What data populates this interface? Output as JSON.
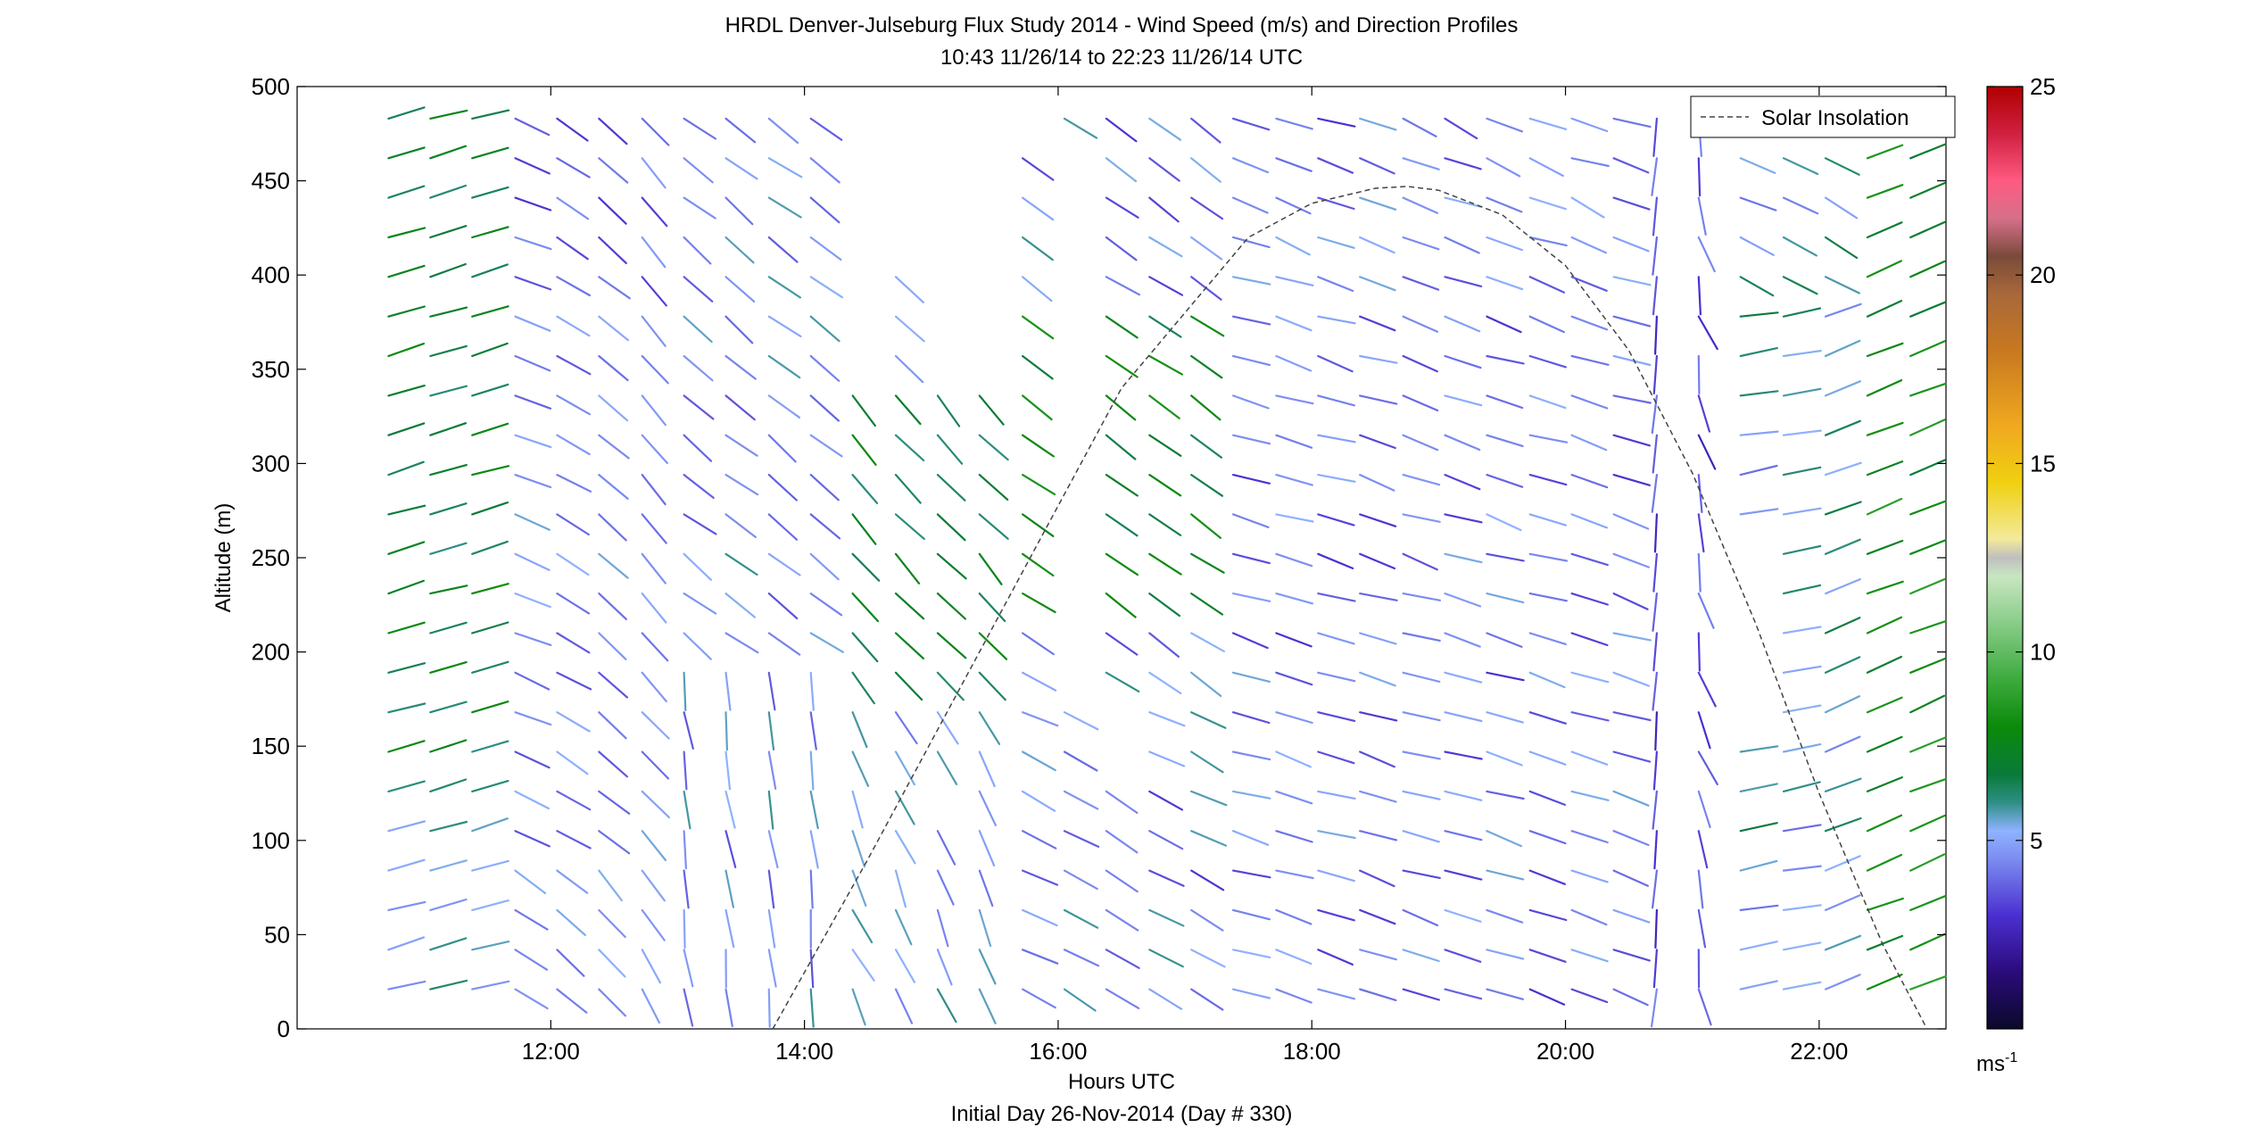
{
  "chart_data": {
    "type": "wind_barb_profile",
    "title": "HRDL Denver-Julseburg Flux Study 2014 - Wind Speed (m/s) and Direction Profiles",
    "subtitle": "10:43 11/26/14 to 22:23 11/26/14  UTC",
    "xlabel": "Hours UTC",
    "xlabel2": "Initial Day 26-Nov-2014 (Day # 330)",
    "ylabel": "Altitude (m)",
    "xlim": [
      10,
      23
    ],
    "ylim": [
      0,
      500
    ],
    "xticks": [
      12,
      14,
      16,
      18,
      20,
      22
    ],
    "xtick_labels": [
      "12:00",
      "14:00",
      "16:00",
      "18:00",
      "20:00",
      "22:00"
    ],
    "yticks": [
      0,
      50,
      100,
      150,
      200,
      250,
      300,
      350,
      400,
      450,
      500
    ],
    "ytick_labels": [
      "0",
      "50",
      "100",
      "150",
      "200",
      "250",
      "300",
      "350",
      "400",
      "450",
      "500"
    ],
    "colorbar": {
      "range": [
        0,
        25
      ],
      "ticks": [
        5,
        10,
        15,
        20,
        25
      ],
      "tick_labels": [
        "5",
        "10",
        "15",
        "20",
        "25"
      ],
      "unit_label": "ms",
      "unit_exp": "-1"
    },
    "legend": {
      "placement": "top-right",
      "entries": [
        "Solar Insolation"
      ]
    },
    "solar_insolation": {
      "x": [
        13.75,
        14.5,
        15.5,
        16.5,
        17.5,
        18.0,
        18.5,
        18.75,
        19.0,
        19.5,
        20.0,
        20.5,
        21.0,
        21.5,
        22.0,
        22.5,
        22.85
      ],
      "y": [
        0,
        90,
        215,
        340,
        420,
        438,
        446,
        447,
        445,
        432,
        405,
        360,
        295,
        215,
        125,
        45,
        0
      ]
    },
    "time_columns": [
      10.72,
      11.05,
      11.38,
      11.72,
      12.05,
      12.38,
      12.72,
      13.05,
      13.38,
      13.72,
      14.05,
      14.38,
      14.72,
      15.05,
      15.38,
      15.72,
      16.05,
      16.38,
      16.72,
      17.05,
      17.38,
      17.72,
      18.05,
      18.38,
      18.72,
      19.05,
      19.38,
      19.72,
      20.05,
      20.38,
      20.72,
      21.05,
      21.38,
      21.72,
      22.05,
      22.38,
      22.72
    ],
    "altitudes": [
      21,
      42,
      63,
      84,
      105,
      126,
      147,
      168,
      189,
      210,
      231,
      252,
      273,
      294,
      315,
      336,
      357,
      378,
      399,
      420,
      441,
      462,
      483
    ],
    "missing": [
      "14.38:357,378,399,420,441,462,483",
      "14.72:420,441,462,483",
      "15.05:126,357,378,399,420,441,462,483",
      "15.38:357,378,399,420,441,462,483",
      "15.72:483",
      "16.05:189,210,231,252,273,294,315,336,357,378,399,420,441,462",
      "16.38:147,168",
      "21.38:168,189,210,231,252"
    ]
  }
}
